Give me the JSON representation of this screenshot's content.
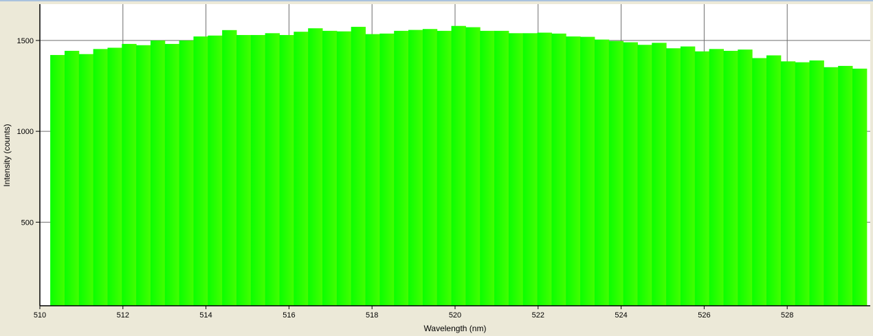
{
  "chart_data": {
    "type": "bar",
    "xlabel": "Wavelength (nm)",
    "ylabel": "Intensity (counts)",
    "xlim": [
      510,
      530
    ],
    "ylim": [
      40,
      1700
    ],
    "xticks": [
      "510",
      "512",
      "514",
      "516",
      "518",
      "520",
      "522",
      "524",
      "526",
      "528"
    ],
    "yticks": [
      "500",
      "1000",
      "1500"
    ],
    "grid": true,
    "bin_start": 510.25,
    "bin_width": 0.345,
    "values": [
      1420,
      1443,
      1425,
      1453,
      1460,
      1481,
      1474,
      1500,
      1481,
      1500,
      1522,
      1527,
      1557,
      1530,
      1530,
      1540,
      1530,
      1548,
      1567,
      1553,
      1550,
      1575,
      1535,
      1538,
      1553,
      1558,
      1563,
      1553,
      1580,
      1573,
      1553,
      1553,
      1540,
      1540,
      1543,
      1538,
      1522,
      1520,
      1505,
      1497,
      1490,
      1476,
      1487,
      1457,
      1467,
      1440,
      1453,
      1443,
      1450,
      1403,
      1418,
      1385,
      1380,
      1390,
      1353,
      1360,
      1345
    ],
    "colors": {
      "start": "#0aff00",
      "end": "#44ff00",
      "background": "#ece9d8",
      "plot": "#ffffff",
      "grid": "#6d6d6d"
    }
  }
}
